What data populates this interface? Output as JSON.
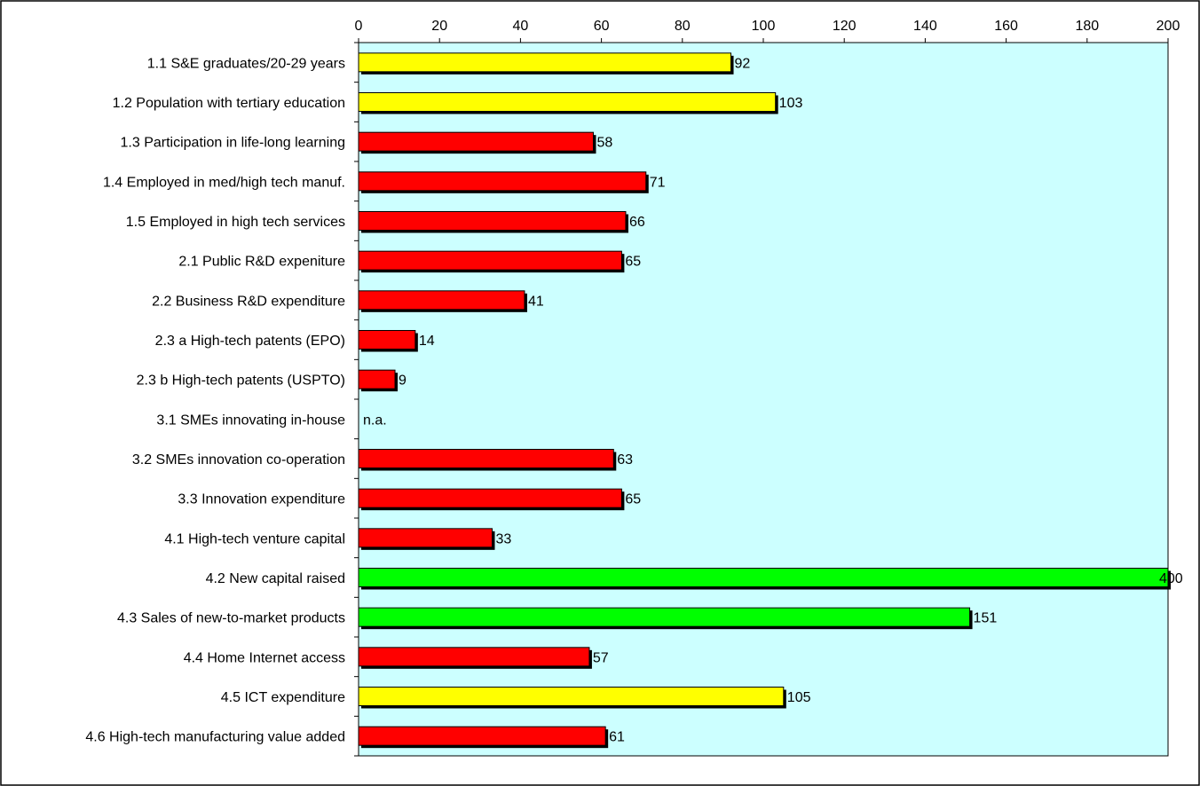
{
  "chart_data": {
    "type": "bar",
    "orientation": "horizontal",
    "categories": [
      "1.1 S&E graduates/20-29 years",
      "1.2 Population with tertiary education",
      "1.3 Participation in life-long learning",
      "1.4 Employed in med/high tech manuf.",
      "1.5 Employed in high tech services",
      "2.1 Public R&D expeniture",
      "2.2 Business R&D expenditure",
      "2.3 a High-tech patents  (EPO)",
      "2.3 b High-tech patents (USPTO)",
      "3.1 SMEs innovating in-house",
      "3.2 SMEs innovation co-operation",
      "3.3 Innovation expenditure",
      "4.1 High-tech venture capital",
      "4.2 New capital raised",
      "4.3 Sales of new-to-market products",
      "4.4 Home Internet access",
      "4.5 ICT expenditure",
      "4.6 High-tech manufacturing value added"
    ],
    "values": [
      92,
      103,
      58,
      71,
      66,
      65,
      41,
      14,
      9,
      null,
      63,
      65,
      33,
      400,
      151,
      57,
      105,
      61
    ],
    "value_labels": [
      "92",
      "103",
      "58",
      "71",
      "66",
      "65",
      "41",
      "14",
      "9",
      "n.a.",
      "63",
      "65",
      "33",
      "400",
      "151",
      "57",
      "105",
      "61"
    ],
    "bar_colors": [
      "#ffff00",
      "#ffff00",
      "#ff0000",
      "#ff0000",
      "#ff0000",
      "#ff0000",
      "#ff0000",
      "#ff0000",
      "#ff0000",
      null,
      "#ff0000",
      "#ff0000",
      "#ff0000",
      "#00ff00",
      "#00ff00",
      "#ff0000",
      "#ffff00",
      "#ff0000"
    ],
    "xlim": [
      0,
      200
    ],
    "xticks": [
      0,
      20,
      40,
      60,
      80,
      100,
      120,
      140,
      160,
      180,
      200
    ],
    "x_axis_position": "top",
    "grid": false,
    "plot_background": "#ccffff",
    "bar_shadow_color": "#000000",
    "title": "",
    "xlabel": "",
    "ylabel": ""
  }
}
